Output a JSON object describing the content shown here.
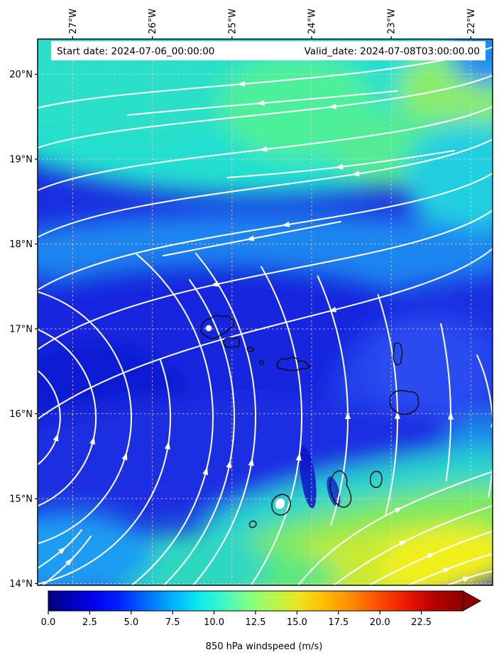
{
  "title_bar": {
    "start": "Start date: 2024-07-06_00:00:00",
    "valid": "Valid_date: 2024-07-08T03:00:00.00"
  },
  "axes": {
    "x_ticks": [
      "27°W",
      "26°W",
      "25°W",
      "24°W",
      "23°W",
      "22°W"
    ],
    "y_ticks": [
      "20°N",
      "19°N",
      "18°N",
      "17°N",
      "16°N",
      "15°N",
      "14°N"
    ]
  },
  "colorbar": {
    "label": "850 hPa windspeed (m/s)",
    "tick_labels": [
      "0.0",
      "2.5",
      "5.0",
      "7.5",
      "10.0",
      "12.5",
      "15.0",
      "17.5",
      "20.0",
      "22.5"
    ],
    "min": 0,
    "max": 25,
    "extend": "max",
    "colormap": "jet"
  },
  "chart_data": {
    "type": "heatmap",
    "variable": "850 hPa windspeed (m/s)",
    "overlays": [
      "white streamlines with arrowheads",
      "black coastline outlines",
      "dashed graticule",
      "white title strip"
    ],
    "start_date": "2024-07-06_00:00:00",
    "valid_date": "2024-07-08T03:00:00.00",
    "x_axis": {
      "ticks": [
        "27°W",
        "26°W",
        "25°W",
        "24°W",
        "23°W",
        "22°W"
      ],
      "approx_range": [
        "27.4°W",
        "21.7°W"
      ]
    },
    "y_axis": {
      "ticks": [
        "20°N",
        "19°N",
        "18°N",
        "17°N",
        "16°N",
        "15°N",
        "14°N"
      ],
      "approx_range": [
        "13.9°N",
        "20.4°N"
      ]
    },
    "colorbar": {
      "ticks": [
        0.0,
        2.5,
        5.0,
        7.5,
        10.0,
        12.5,
        15.0,
        17.5,
        20.0,
        22.5
      ],
      "range": [
        0,
        25
      ],
      "extend": "max",
      "colormap": "jet"
    },
    "field_estimates_ms": [
      {
        "region": "northern band 18N-20.4N",
        "value": "7-10"
      },
      {
        "region": "green patches near 24W 19.5N and 22.5W 19.7N",
        "value": "9-11"
      },
      {
        "region": "central basin 15.5N-18N",
        "value": "2-5"
      },
      {
        "region": "minimum west-center near 26W 16.5N",
        "value": "1-3"
      },
      {
        "region": "southeast yellow band along 14N-15N east half",
        "value": "12-15"
      },
      {
        "region": "southwest corner",
        "value": "8-11"
      },
      {
        "region": "narrow wake north of circular volcanic island near 24.3W 15N",
        "value": "0-2"
      }
    ],
    "flow_pattern": "easterly flow across the north turning anticlockwise around a fan centred just west of the map (~27.5W 16N): northward through the centre, eastward along the southern edge",
    "annotations": [
      {
        "type": "white dot marker",
        "location": "on northwestern island ~25.1W 17.0N"
      },
      {
        "type": "white masked patch",
        "location": "inside circular island ~24.35W 14.95N"
      }
    ]
  }
}
